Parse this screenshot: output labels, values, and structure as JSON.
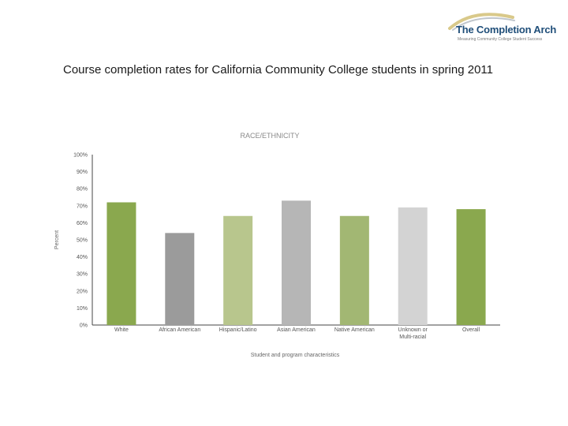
{
  "logo": {
    "title": "The Completion Arch",
    "tagline": "Measuring Community College Student Success"
  },
  "slide_title": "Course completion rates for California Community College students in spring 2011",
  "colors": {
    "green_dark": "#8aa84e",
    "gray_dark": "#9b9b9b",
    "green_light": "#b8c68d",
    "gray_mid": "#b6b6b6",
    "green_mid": "#a2b773",
    "gray_light": "#d3d3d3",
    "logo_blue": "#1f4e79",
    "logo_arc": "#d9c98a"
  },
  "chart_data": {
    "type": "bar",
    "title": "RACE/ETHNICITY",
    "xlabel": "Student and program characteristics",
    "ylabel": "Percent",
    "ylim": [
      0,
      100
    ],
    "yticks": [
      "0%",
      "10%",
      "20%",
      "30%",
      "40%",
      "50%",
      "60%",
      "70%",
      "80%",
      "90%",
      "100%"
    ],
    "categories": [
      "White",
      "African American",
      "Hispanic/Latino",
      "Asian American",
      "Native American",
      "Unknown or Multi-racial",
      "Overall"
    ],
    "category_lines": [
      [
        "White"
      ],
      [
        "African American"
      ],
      [
        "Hispanic/Latino"
      ],
      [
        "Asian American"
      ],
      [
        "Native American"
      ],
      [
        "Unknown or",
        "Multi-racial"
      ],
      [
        "Overall"
      ]
    ],
    "values": [
      72,
      54,
      64,
      73,
      64,
      69,
      68
    ],
    "bar_colors": [
      "#8aa84e",
      "#9b9b9b",
      "#b8c68d",
      "#b6b6b6",
      "#a2b773",
      "#d3d3d3",
      "#8aa84e"
    ],
    "grid": false,
    "legend": "none"
  }
}
